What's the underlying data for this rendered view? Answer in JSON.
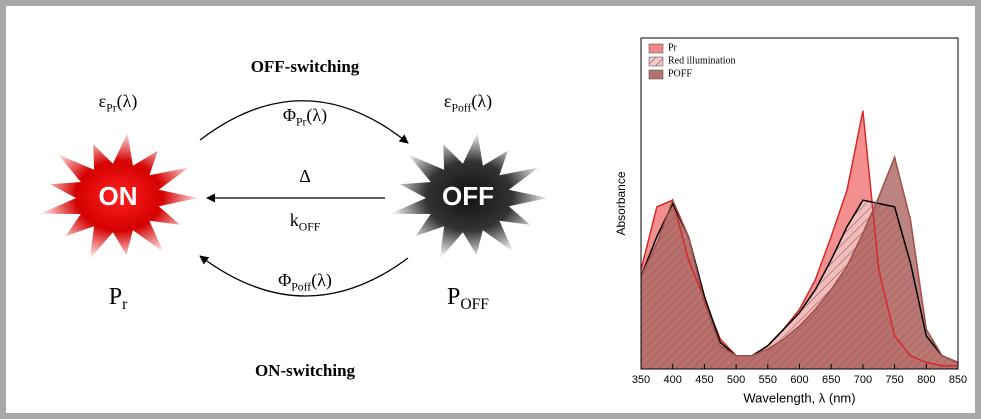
{
  "diagram": {
    "off_switching": "OFF-switching",
    "on_switching": "ON-switching",
    "eps_pr": {
      "base": "ε",
      "sub": "Pr",
      "tail": "(λ)"
    },
    "eps_poff": {
      "base": "ε",
      "sub": "Poff",
      "tail": "(λ)"
    },
    "phi_pr": {
      "base": "Φ",
      "sub": "Pr",
      "tail": "(λ)"
    },
    "phi_poff": {
      "base": "Φ",
      "sub": "Poff",
      "tail": "(λ)"
    },
    "delta": "Δ",
    "k_off": {
      "base": "k",
      "sub": "OFF"
    },
    "on_label": "ON",
    "off_label": "OFF",
    "pr": {
      "base": "P",
      "sub": "r"
    },
    "poff": {
      "base": "P",
      "sub": "OFF"
    }
  },
  "chart_data": {
    "type": "area",
    "x_label": "Wavelength, λ (nm)",
    "y_label": "Absorbance",
    "x": [
      350,
      375,
      400,
      425,
      450,
      475,
      500,
      525,
      550,
      575,
      600,
      625,
      650,
      675,
      700,
      725,
      750,
      775,
      800,
      825,
      850
    ],
    "xlim": [
      350,
      850
    ],
    "xticks": [
      350,
      400,
      450,
      500,
      550,
      600,
      650,
      700,
      750,
      800,
      850
    ],
    "ylim": [
      0,
      1
    ],
    "series": [
      {
        "name": "Pr",
        "color": "#f06a6a",
        "values": [
          0.3,
          0.49,
          0.51,
          0.33,
          0.21,
          0.09,
          0.04,
          0.04,
          0.07,
          0.12,
          0.18,
          0.27,
          0.4,
          0.54,
          0.78,
          0.3,
          0.1,
          0.04,
          0.02,
          0.01,
          0.01
        ]
      },
      {
        "name": "Red illumination",
        "color": "#000000",
        "values": [
          0.28,
          0.4,
          0.5,
          0.4,
          0.22,
          0.08,
          0.04,
          0.04,
          0.07,
          0.12,
          0.17,
          0.24,
          0.33,
          0.43,
          0.51,
          0.5,
          0.49,
          0.32,
          0.1,
          0.04,
          0.02
        ]
      },
      {
        "name": "POFF",
        "color": "#a0504c",
        "values": [
          0.28,
          0.38,
          0.51,
          0.4,
          0.2,
          0.07,
          0.04,
          0.04,
          0.06,
          0.09,
          0.13,
          0.18,
          0.24,
          0.31,
          0.41,
          0.52,
          0.64,
          0.45,
          0.12,
          0.04,
          0.02
        ]
      }
    ]
  }
}
